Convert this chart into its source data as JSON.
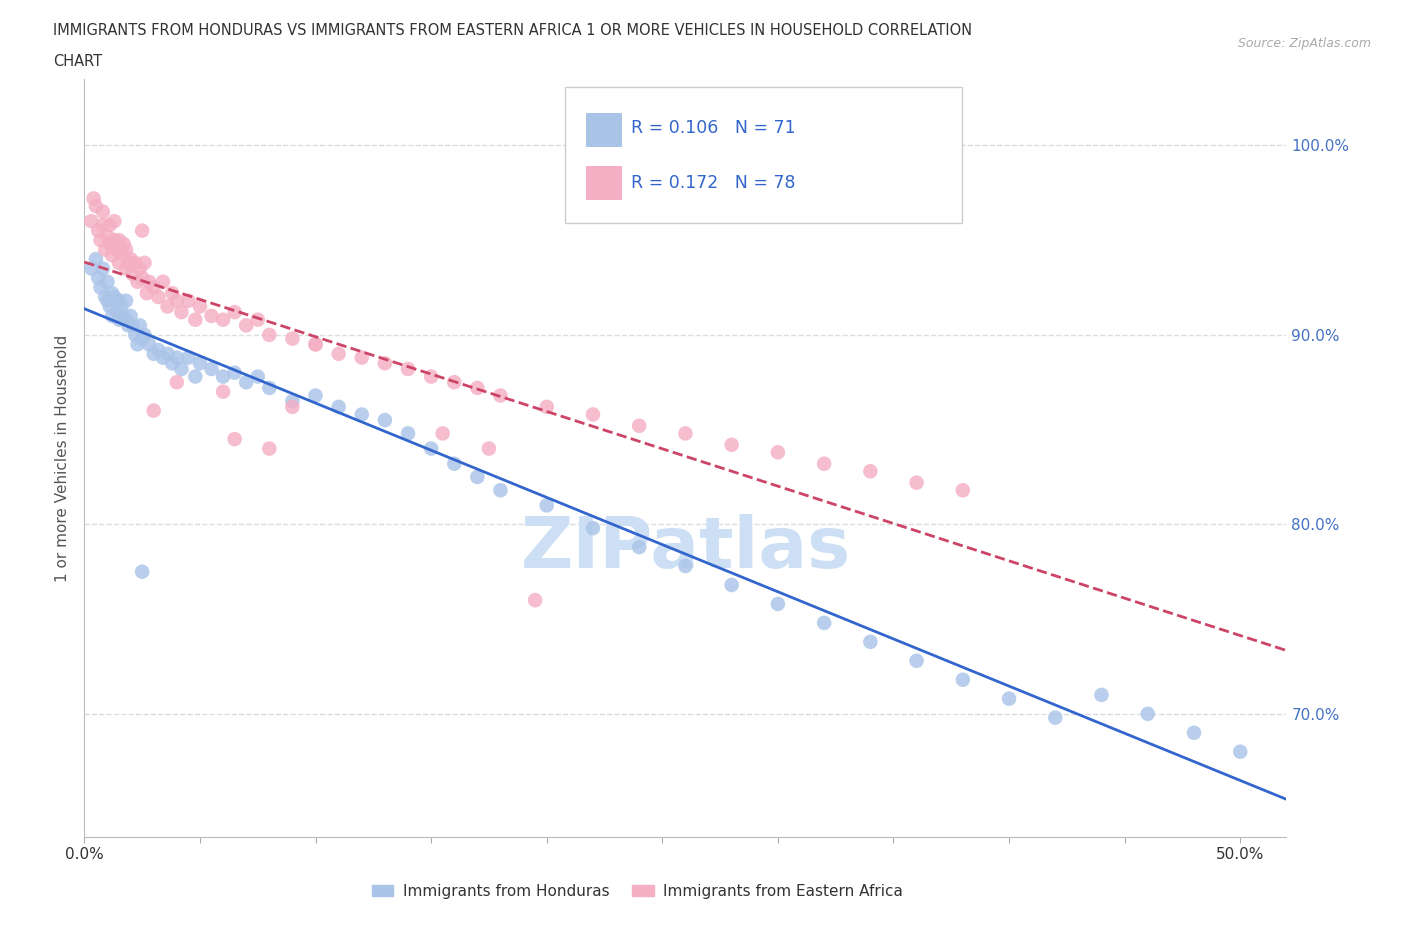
{
  "title_line1": "IMMIGRANTS FROM HONDURAS VS IMMIGRANTS FROM EASTERN AFRICA 1 OR MORE VEHICLES IN HOUSEHOLD CORRELATION",
  "title_line2": "CHART",
  "source_text": "Source: ZipAtlas.com",
  "ylabel": "1 or more Vehicles in Household",
  "xlim": [
    0.0,
    0.52
  ],
  "ylim": [
    0.635,
    1.035
  ],
  "ytick_positions": [
    0.7,
    0.8,
    0.9,
    1.0
  ],
  "ytick_labels": [
    "70.0%",
    "80.0%",
    "90.0%",
    "100.0%"
  ],
  "xtick_positions": [
    0.0,
    0.05,
    0.1,
    0.15,
    0.2,
    0.25,
    0.3,
    0.35,
    0.4,
    0.45,
    0.5
  ],
  "xtick_labels": [
    "0.0%",
    "",
    "",
    "",
    "",
    "",
    "",
    "",
    "",
    "",
    "50.0%"
  ],
  "blue_color": "#aac4e8",
  "pink_color": "#f4afc4",
  "blue_line_color": "#3366cc",
  "pink_line_color": "#cc4466",
  "blue_R": 0.106,
  "blue_N": 71,
  "pink_R": 0.172,
  "pink_N": 78,
  "watermark_text": "ZIPatlas",
  "watermark_color": "#ccdff5",
  "ytick_color": "#4472c4",
  "title_color": "#333333",
  "source_color": "#aaaaaa",
  "grid_color": "#dddddd",
  "bg_color": "#ffffff",
  "blue_label": "Immigrants from Honduras",
  "pink_label": "Immigrants from Eastern Africa",
  "blue_points_x": [
    0.003,
    0.005,
    0.006,
    0.007,
    0.008,
    0.009,
    0.01,
    0.01,
    0.011,
    0.012,
    0.012,
    0.013,
    0.014,
    0.015,
    0.015,
    0.016,
    0.017,
    0.018,
    0.018,
    0.019,
    0.02,
    0.021,
    0.022,
    0.023,
    0.024,
    0.025,
    0.026,
    0.028,
    0.03,
    0.032,
    0.034,
    0.036,
    0.038,
    0.04,
    0.042,
    0.045,
    0.048,
    0.05,
    0.055,
    0.06,
    0.065,
    0.07,
    0.075,
    0.08,
    0.09,
    0.1,
    0.11,
    0.12,
    0.13,
    0.14,
    0.15,
    0.16,
    0.17,
    0.18,
    0.2,
    0.22,
    0.24,
    0.26,
    0.28,
    0.3,
    0.32,
    0.34,
    0.36,
    0.38,
    0.4,
    0.42,
    0.44,
    0.46,
    0.48,
    0.5,
    0.025
  ],
  "blue_points_y": [
    0.935,
    0.94,
    0.93,
    0.925,
    0.935,
    0.92,
    0.918,
    0.928,
    0.915,
    0.922,
    0.91,
    0.92,
    0.912,
    0.918,
    0.908,
    0.915,
    0.91,
    0.908,
    0.918,
    0.905,
    0.91,
    0.905,
    0.9,
    0.895,
    0.905,
    0.898,
    0.9,
    0.895,
    0.89,
    0.892,
    0.888,
    0.89,
    0.885,
    0.888,
    0.882,
    0.888,
    0.878,
    0.885,
    0.882,
    0.878,
    0.88,
    0.875,
    0.878,
    0.872,
    0.865,
    0.868,
    0.862,
    0.858,
    0.855,
    0.848,
    0.84,
    0.832,
    0.825,
    0.818,
    0.81,
    0.798,
    0.788,
    0.778,
    0.768,
    0.758,
    0.748,
    0.738,
    0.728,
    0.718,
    0.708,
    0.698,
    0.71,
    0.7,
    0.69,
    0.68,
    0.775
  ],
  "pink_points_x": [
    0.003,
    0.004,
    0.005,
    0.006,
    0.007,
    0.008,
    0.008,
    0.009,
    0.01,
    0.011,
    0.011,
    0.012,
    0.013,
    0.013,
    0.014,
    0.015,
    0.015,
    0.016,
    0.017,
    0.018,
    0.018,
    0.019,
    0.02,
    0.021,
    0.022,
    0.023,
    0.024,
    0.025,
    0.026,
    0.027,
    0.028,
    0.03,
    0.032,
    0.034,
    0.036,
    0.038,
    0.04,
    0.042,
    0.045,
    0.048,
    0.05,
    0.055,
    0.06,
    0.065,
    0.07,
    0.075,
    0.08,
    0.09,
    0.1,
    0.11,
    0.12,
    0.13,
    0.14,
    0.15,
    0.16,
    0.17,
    0.18,
    0.2,
    0.22,
    0.24,
    0.26,
    0.28,
    0.3,
    0.32,
    0.34,
    0.36,
    0.38,
    0.155,
    0.195,
    0.175,
    0.025,
    0.03,
    0.04,
    0.06,
    0.08,
    0.09,
    0.1,
    0.065
  ],
  "pink_points_y": [
    0.96,
    0.972,
    0.968,
    0.955,
    0.95,
    0.965,
    0.958,
    0.945,
    0.952,
    0.948,
    0.958,
    0.942,
    0.95,
    0.96,
    0.945,
    0.938,
    0.95,
    0.943,
    0.948,
    0.935,
    0.945,
    0.938,
    0.94,
    0.932,
    0.938,
    0.928,
    0.935,
    0.93,
    0.938,
    0.922,
    0.928,
    0.925,
    0.92,
    0.928,
    0.915,
    0.922,
    0.918,
    0.912,
    0.918,
    0.908,
    0.915,
    0.91,
    0.908,
    0.912,
    0.905,
    0.908,
    0.9,
    0.898,
    0.895,
    0.89,
    0.888,
    0.885,
    0.882,
    0.878,
    0.875,
    0.872,
    0.868,
    0.862,
    0.858,
    0.852,
    0.848,
    0.842,
    0.838,
    0.832,
    0.828,
    0.822,
    0.818,
    0.848,
    0.76,
    0.84,
    0.955,
    0.86,
    0.875,
    0.87,
    0.84,
    0.862,
    0.895,
    0.845
  ]
}
